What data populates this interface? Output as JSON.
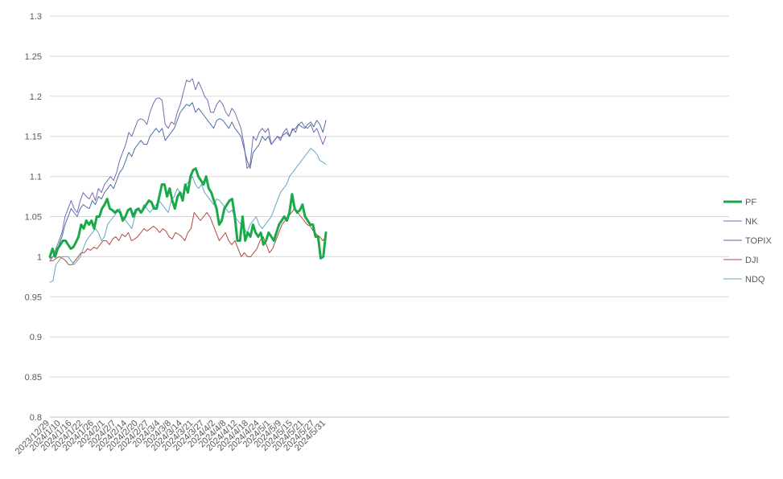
{
  "chart_data": {
    "type": "line",
    "title": "",
    "xlabel": "",
    "ylabel": "",
    "ylim": [
      0.8,
      1.3
    ],
    "yticks": [
      "0.8",
      "0.85",
      "0.9",
      "0.95",
      "1",
      "1.05",
      "1.1",
      "1.15",
      "1.2",
      "1.25",
      "1.3"
    ],
    "grid": true,
    "legend_position": "right",
    "xtick_labels": [
      "2023/12/29",
      "2024/1/10",
      "2024/1/16",
      "2024/1/22",
      "2024/1/26",
      "2024/2/1",
      "2024/2/7",
      "2024/2/14",
      "2024/2/20",
      "2024/2/27",
      "2024/3/4",
      "2024/3/8",
      "2024/3/14",
      "2024/3/21",
      "2024/3/27",
      "2024/4/2",
      "2024/4/8",
      "2024/4/12",
      "2024/4/18",
      "2024/4/24",
      "2024/5/1",
      "2024/5/9",
      "2024/5/15",
      "2024/5/21",
      "2024/5/27",
      "2024/5/31"
    ],
    "series": [
      {
        "name": "PF",
        "color": "#1aa94a",
        "values": [
          1.0,
          1.01,
          1.0,
          1.01,
          1.015,
          1.02,
          1.02,
          1.015,
          1.01,
          1.012,
          1.018,
          1.025,
          1.04,
          1.035,
          1.045,
          1.04,
          1.045,
          1.035,
          1.05,
          1.05,
          1.06,
          1.065,
          1.072,
          1.06,
          1.058,
          1.055,
          1.058,
          1.055,
          1.045,
          1.05,
          1.058,
          1.06,
          1.05,
          1.058,
          1.06,
          1.055,
          1.06,
          1.065,
          1.07,
          1.068,
          1.06,
          1.06,
          1.075,
          1.09,
          1.09,
          1.075,
          1.085,
          1.07,
          1.06,
          1.075,
          1.08,
          1.07,
          1.09,
          1.08,
          1.1,
          1.108,
          1.11,
          1.1,
          1.095,
          1.09,
          1.1,
          1.085,
          1.08,
          1.07,
          1.06,
          1.04,
          1.045,
          1.06,
          1.065,
          1.07,
          1.072,
          1.05,
          1.02,
          1.02,
          1.05,
          1.02,
          1.03,
          1.025,
          1.04,
          1.03,
          1.025,
          1.03,
          1.015,
          1.02,
          1.03,
          1.025,
          1.02,
          1.03,
          1.04,
          1.045,
          1.05,
          1.045,
          1.055,
          1.078,
          1.06,
          1.055,
          1.058,
          1.065,
          1.05,
          1.045,
          1.04,
          1.04,
          1.025,
          1.025,
          0.998,
          1.0,
          1.03
        ]
      },
      {
        "name": "NK",
        "color": "#7b68b1",
        "values": [
          0.995,
          1.0,
          1.01,
          1.02,
          1.03,
          1.05,
          1.06,
          1.07,
          1.06,
          1.055,
          1.07,
          1.08,
          1.075,
          1.072,
          1.08,
          1.07,
          1.085,
          1.08,
          1.09,
          1.095,
          1.1,
          1.095,
          1.105,
          1.12,
          1.13,
          1.14,
          1.155,
          1.15,
          1.16,
          1.17,
          1.172,
          1.17,
          1.165,
          1.18,
          1.19,
          1.197,
          1.198,
          1.195,
          1.165,
          1.16,
          1.168,
          1.165,
          1.18,
          1.19,
          1.205,
          1.22,
          1.218,
          1.222,
          1.208,
          1.218,
          1.21,
          1.2,
          1.195,
          1.18,
          1.18,
          1.19,
          1.195,
          1.19,
          1.18,
          1.175,
          1.185,
          1.18,
          1.17,
          1.16,
          1.14,
          1.11,
          1.115,
          1.15,
          1.145,
          1.155,
          1.16,
          1.155,
          1.16,
          1.14,
          1.145,
          1.15,
          1.145,
          1.155,
          1.16,
          1.15,
          1.16,
          1.155,
          1.165,
          1.168,
          1.162,
          1.16,
          1.165,
          1.155,
          1.16,
          1.15,
          1.14,
          1.15
        ]
      },
      {
        "name": "TOPIX",
        "color": "#4a6fa5",
        "values": [
          0.998,
          1.0,
          1.005,
          1.015,
          1.025,
          1.04,
          1.05,
          1.06,
          1.055,
          1.05,
          1.06,
          1.065,
          1.062,
          1.06,
          1.07,
          1.065,
          1.075,
          1.072,
          1.08,
          1.085,
          1.09,
          1.085,
          1.095,
          1.105,
          1.11,
          1.12,
          1.13,
          1.125,
          1.135,
          1.14,
          1.145,
          1.14,
          1.14,
          1.15,
          1.155,
          1.16,
          1.155,
          1.16,
          1.145,
          1.15,
          1.155,
          1.16,
          1.17,
          1.18,
          1.185,
          1.19,
          1.188,
          1.192,
          1.18,
          1.185,
          1.18,
          1.175,
          1.17,
          1.165,
          1.16,
          1.17,
          1.172,
          1.17,
          1.165,
          1.16,
          1.168,
          1.16,
          1.155,
          1.15,
          1.135,
          1.12,
          1.11,
          1.13,
          1.135,
          1.14,
          1.15,
          1.145,
          1.15,
          1.14,
          1.145,
          1.15,
          1.148,
          1.152,
          1.155,
          1.15,
          1.158,
          1.16,
          1.165,
          1.162,
          1.16,
          1.165,
          1.168,
          1.162,
          1.17,
          1.165,
          1.155,
          1.17
        ]
      },
      {
        "name": "DJI",
        "color": "#b24a3f",
        "values": [
          0.995,
          0.995,
          0.998,
          1.0,
          0.998,
          0.995,
          0.99,
          0.99,
          0.995,
          1.0,
          1.005,
          1.005,
          1.01,
          1.008,
          1.012,
          1.01,
          1.015,
          1.02,
          1.02,
          1.015,
          1.022,
          1.025,
          1.02,
          1.028,
          1.025,
          1.03,
          1.02,
          1.022,
          1.025,
          1.03,
          1.035,
          1.032,
          1.035,
          1.038,
          1.035,
          1.03,
          1.035,
          1.032,
          1.025,
          1.022,
          1.03,
          1.028,
          1.025,
          1.02,
          1.03,
          1.035,
          1.055,
          1.05,
          1.045,
          1.05,
          1.055,
          1.05,
          1.04,
          1.03,
          1.02,
          1.025,
          1.03,
          1.02,
          1.015,
          1.02,
          1.01,
          1.0,
          1.005,
          1.0,
          1.0,
          1.005,
          1.01,
          1.02,
          1.025,
          1.015,
          1.005,
          1.01,
          1.02,
          1.03,
          1.04,
          1.045,
          1.05,
          1.055,
          1.06,
          1.055,
          1.05,
          1.045,
          1.04,
          1.038,
          1.032,
          1.028,
          1.025,
          1.02,
          1.025
        ]
      },
      {
        "name": "NDQ",
        "color": "#5ea8c4",
        "values": [
          0.968,
          0.97,
          0.99,
          0.995,
          1.0,
          1.0,
          1.0,
          0.995,
          0.99,
          0.995,
          1.0,
          1.01,
          1.02,
          1.025,
          1.03,
          1.035,
          1.03,
          1.02,
          1.025,
          1.04,
          1.045,
          1.05,
          1.055,
          1.06,
          1.05,
          1.045,
          1.04,
          1.035,
          1.05,
          1.06,
          1.055,
          1.065,
          1.06,
          1.055,
          1.06,
          1.065,
          1.07,
          1.065,
          1.06,
          1.055,
          1.07,
          1.075,
          1.085,
          1.08,
          1.078,
          1.09,
          1.095,
          1.1,
          1.09,
          1.085,
          1.09,
          1.08,
          1.075,
          1.07,
          1.065,
          1.072,
          1.07,
          1.065,
          1.06,
          1.055,
          1.058,
          1.05,
          1.045,
          1.04,
          1.035,
          1.03,
          1.04,
          1.045,
          1.05,
          1.04,
          1.035,
          1.04,
          1.045,
          1.05,
          1.06,
          1.07,
          1.08,
          1.085,
          1.09,
          1.1,
          1.105,
          1.11,
          1.115,
          1.12,
          1.125,
          1.13,
          1.135,
          1.132,
          1.128,
          1.12,
          1.118,
          1.115
        ]
      }
    ]
  }
}
